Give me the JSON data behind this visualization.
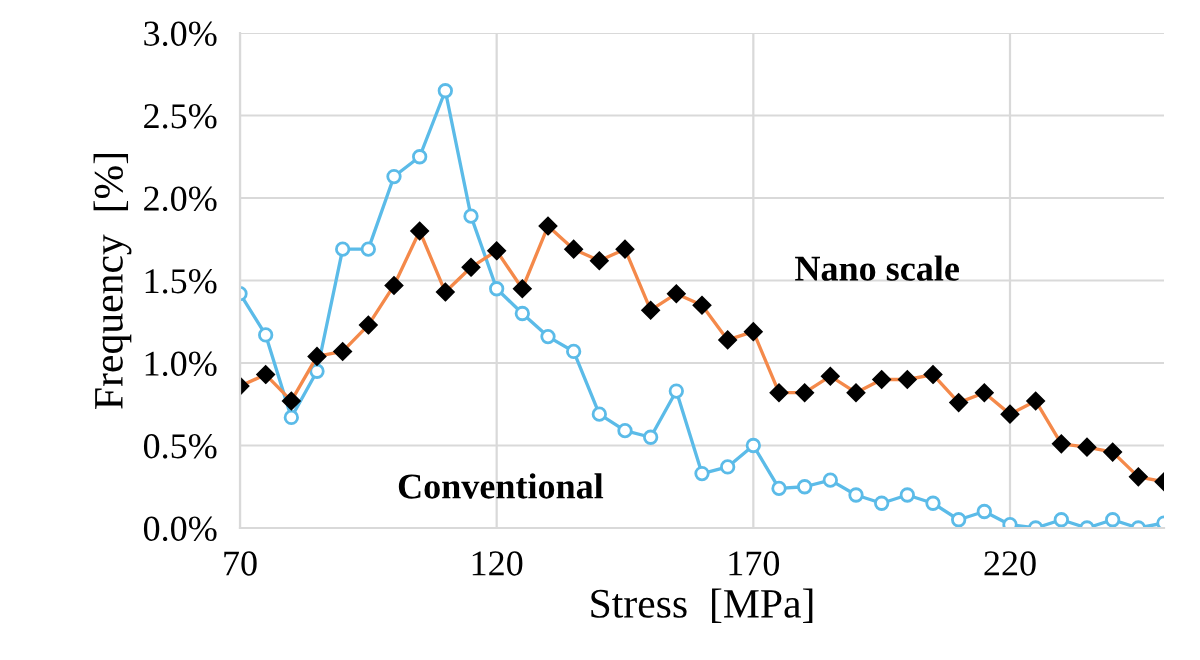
{
  "chart_data": {
    "type": "line",
    "xlabel": "Stress  [MPa]",
    "ylabel": "Frequency  [%]",
    "x": [
      70,
      75,
      80,
      85,
      90,
      95,
      100,
      105,
      110,
      115,
      120,
      125,
      130,
      135,
      140,
      145,
      150,
      155,
      160,
      165,
      170,
      175,
      180,
      185,
      190,
      195,
      200,
      205,
      210,
      215,
      220,
      225,
      230,
      235,
      240,
      245,
      250
    ],
    "series": [
      {
        "name": "Conventional",
        "color": "#5bbbe8",
        "marker": "circle",
        "values": [
          1.42,
          1.17,
          0.67,
          0.95,
          1.69,
          1.69,
          2.13,
          2.25,
          2.65,
          1.89,
          1.45,
          1.3,
          1.16,
          1.07,
          0.69,
          0.59,
          0.55,
          0.83,
          0.33,
          0.37,
          0.5,
          0.24,
          0.25,
          0.29,
          0.2,
          0.15,
          0.2,
          0.15,
          0.05,
          0.1,
          0.02,
          0.0,
          0.05,
          0.0,
          0.05,
          0.0,
          0.03
        ]
      },
      {
        "name": "Nano scale",
        "color": "#f4894a",
        "marker": "diamond",
        "values": [
          0.86,
          0.93,
          0.77,
          1.04,
          1.07,
          1.23,
          1.47,
          1.8,
          1.43,
          1.58,
          1.68,
          1.45,
          1.83,
          1.69,
          1.62,
          1.69,
          1.32,
          1.42,
          1.35,
          1.14,
          1.19,
          0.82,
          0.82,
          0.92,
          0.82,
          0.9,
          0.9,
          0.93,
          0.76,
          0.82,
          0.69,
          0.77,
          0.51,
          0.49,
          0.46,
          0.31,
          0.28
        ]
      }
    ],
    "xlim": [
      70,
      250
    ],
    "xticks": [
      70,
      120,
      170,
      220
    ],
    "ylim": [
      0,
      3.0
    ],
    "yticks": [
      {
        "value": 0,
        "label": "0.0%"
      },
      {
        "value": 0.5,
        "label": "0.5%"
      },
      {
        "value": 1.0,
        "label": "1.0%"
      },
      {
        "value": 1.5,
        "label": "1.5%"
      },
      {
        "value": 2.0,
        "label": "2.0%"
      },
      {
        "value": 2.5,
        "label": "2.5%"
      },
      {
        "value": 3.0,
        "label": "3.0%"
      }
    ],
    "grid": true,
    "legend": false
  }
}
